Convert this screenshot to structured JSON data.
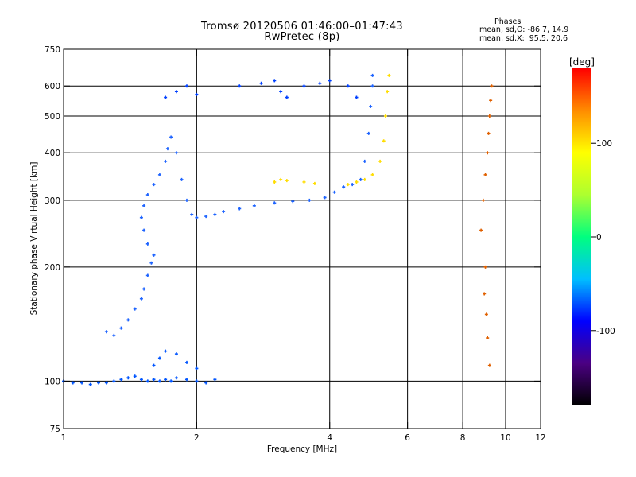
{
  "header": {
    "title": "Tromsø 20120506 01:46:00–01:47:43",
    "subtitle": "RwPretec (8p)"
  },
  "info": {
    "heading": "Phases",
    "line1": "mean, sd,O: -86.7, 14.9",
    "line2": "mean, sd,X:  95.5, 20.6"
  },
  "colorbar": {
    "label": "[deg]",
    "range": [
      -180,
      180
    ],
    "ticks": [
      "100",
      "0",
      "-100"
    ],
    "colors": [
      "#000000",
      "#4b0082",
      "#0000ff",
      "#00bfff",
      "#00ff7f",
      "#adff2f",
      "#ffff00",
      "#ff8c00",
      "#ff0000"
    ]
  },
  "chart_data": {
    "type": "scatter",
    "title": "Tromsø 20120506 01:46:00–01:47:43",
    "subtitle": "RwPretec (8p)",
    "xlabel": "Frequency [MHz]",
    "ylabel": "Stationary phase Virtual Height [km]",
    "xscale": "log",
    "yscale": "log",
    "xlim": [
      1,
      12
    ],
    "ylim": [
      75,
      750
    ],
    "xticks": [
      1,
      2,
      4,
      6,
      8,
      10,
      12
    ],
    "yticks": [
      75,
      100,
      200,
      300,
      400,
      500,
      600,
      750
    ],
    "x_gridlines": [
      2,
      4,
      6,
      8,
      10
    ],
    "y_gridlines": [
      100,
      200,
      300,
      400,
      500,
      600
    ],
    "color_scale": "phase [deg]",
    "series": [
      {
        "color": "#0055ff",
        "points": [
          [
            1.0,
            100
          ],
          [
            1.05,
            99
          ],
          [
            1.1,
            99
          ],
          [
            1.15,
            98
          ],
          [
            1.2,
            99
          ],
          [
            1.25,
            99
          ],
          [
            1.3,
            100
          ],
          [
            1.35,
            101
          ],
          [
            1.4,
            102
          ],
          [
            1.45,
            103
          ],
          [
            1.5,
            101
          ],
          [
            1.55,
            100
          ],
          [
            1.6,
            101
          ],
          [
            1.65,
            100
          ],
          [
            1.7,
            101
          ],
          [
            1.75,
            100
          ],
          [
            1.8,
            102
          ],
          [
            1.9,
            101
          ],
          [
            2.0,
            100
          ],
          [
            2.1,
            99
          ],
          [
            2.2,
            101
          ],
          [
            1.6,
            110
          ],
          [
            1.65,
            115
          ],
          [
            1.7,
            120
          ],
          [
            1.8,
            118
          ],
          [
            1.9,
            112
          ],
          [
            2.0,
            108
          ]
        ]
      },
      {
        "color": "#1e64ff",
        "points": [
          [
            1.25,
            135
          ],
          [
            1.3,
            132
          ],
          [
            1.35,
            138
          ],
          [
            1.4,
            145
          ],
          [
            1.45,
            155
          ],
          [
            1.5,
            165
          ],
          [
            1.52,
            175
          ],
          [
            1.55,
            190
          ],
          [
            1.58,
            205
          ],
          [
            1.6,
            215
          ],
          [
            1.55,
            230
          ],
          [
            1.52,
            250
          ],
          [
            1.5,
            270
          ],
          [
            1.52,
            290
          ],
          [
            1.55,
            310
          ],
          [
            1.6,
            330
          ],
          [
            1.65,
            350
          ],
          [
            1.7,
            380
          ],
          [
            1.72,
            410
          ],
          [
            1.75,
            440
          ],
          [
            1.8,
            400
          ],
          [
            1.85,
            340
          ],
          [
            1.9,
            300
          ],
          [
            1.95,
            275
          ],
          [
            2.0,
            270
          ],
          [
            2.1,
            272
          ],
          [
            2.2,
            275
          ],
          [
            2.3,
            280
          ],
          [
            2.5,
            285
          ],
          [
            2.7,
            290
          ],
          [
            3.0,
            295
          ],
          [
            3.3,
            298
          ],
          [
            3.6,
            300
          ],
          [
            3.9,
            305
          ],
          [
            4.1,
            315
          ],
          [
            4.3,
            325
          ],
          [
            4.5,
            330
          ],
          [
            4.7,
            340
          ],
          [
            4.8,
            380
          ],
          [
            4.9,
            450
          ],
          [
            4.95,
            530
          ],
          [
            5.0,
            600
          ],
          [
            5.0,
            640
          ]
        ]
      },
      {
        "color": "#ffdd00",
        "points": [
          [
            3.0,
            335
          ],
          [
            3.1,
            340
          ],
          [
            3.2,
            338
          ],
          [
            3.5,
            335
          ],
          [
            3.7,
            332
          ],
          [
            4.4,
            330
          ],
          [
            4.6,
            335
          ],
          [
            4.8,
            340
          ],
          [
            5.0,
            350
          ],
          [
            5.2,
            380
          ],
          [
            5.3,
            430
          ],
          [
            5.35,
            500
          ],
          [
            5.4,
            580
          ],
          [
            5.45,
            640
          ]
        ]
      },
      {
        "color": "#0040ff",
        "points": [
          [
            1.7,
            560
          ],
          [
            1.8,
            580
          ],
          [
            1.9,
            600
          ],
          [
            2.0,
            570
          ],
          [
            2.5,
            600
          ],
          [
            2.8,
            610
          ],
          [
            3.0,
            620
          ],
          [
            3.1,
            580
          ],
          [
            3.2,
            560
          ],
          [
            3.5,
            600
          ],
          [
            3.8,
            610
          ],
          [
            4.0,
            620
          ],
          [
            4.4,
            600
          ],
          [
            4.6,
            560
          ]
        ]
      },
      {
        "color": "#e06000",
        "points": [
          [
            8.8,
            250
          ],
          [
            8.9,
            300
          ],
          [
            9.0,
            350
          ],
          [
            9.1,
            400
          ],
          [
            9.15,
            450
          ],
          [
            9.2,
            500
          ],
          [
            9.25,
            550
          ],
          [
            9.3,
            600
          ],
          [
            9.0,
            200
          ],
          [
            8.95,
            170
          ],
          [
            9.05,
            150
          ],
          [
            9.1,
            130
          ],
          [
            9.2,
            110
          ]
        ]
      }
    ]
  }
}
